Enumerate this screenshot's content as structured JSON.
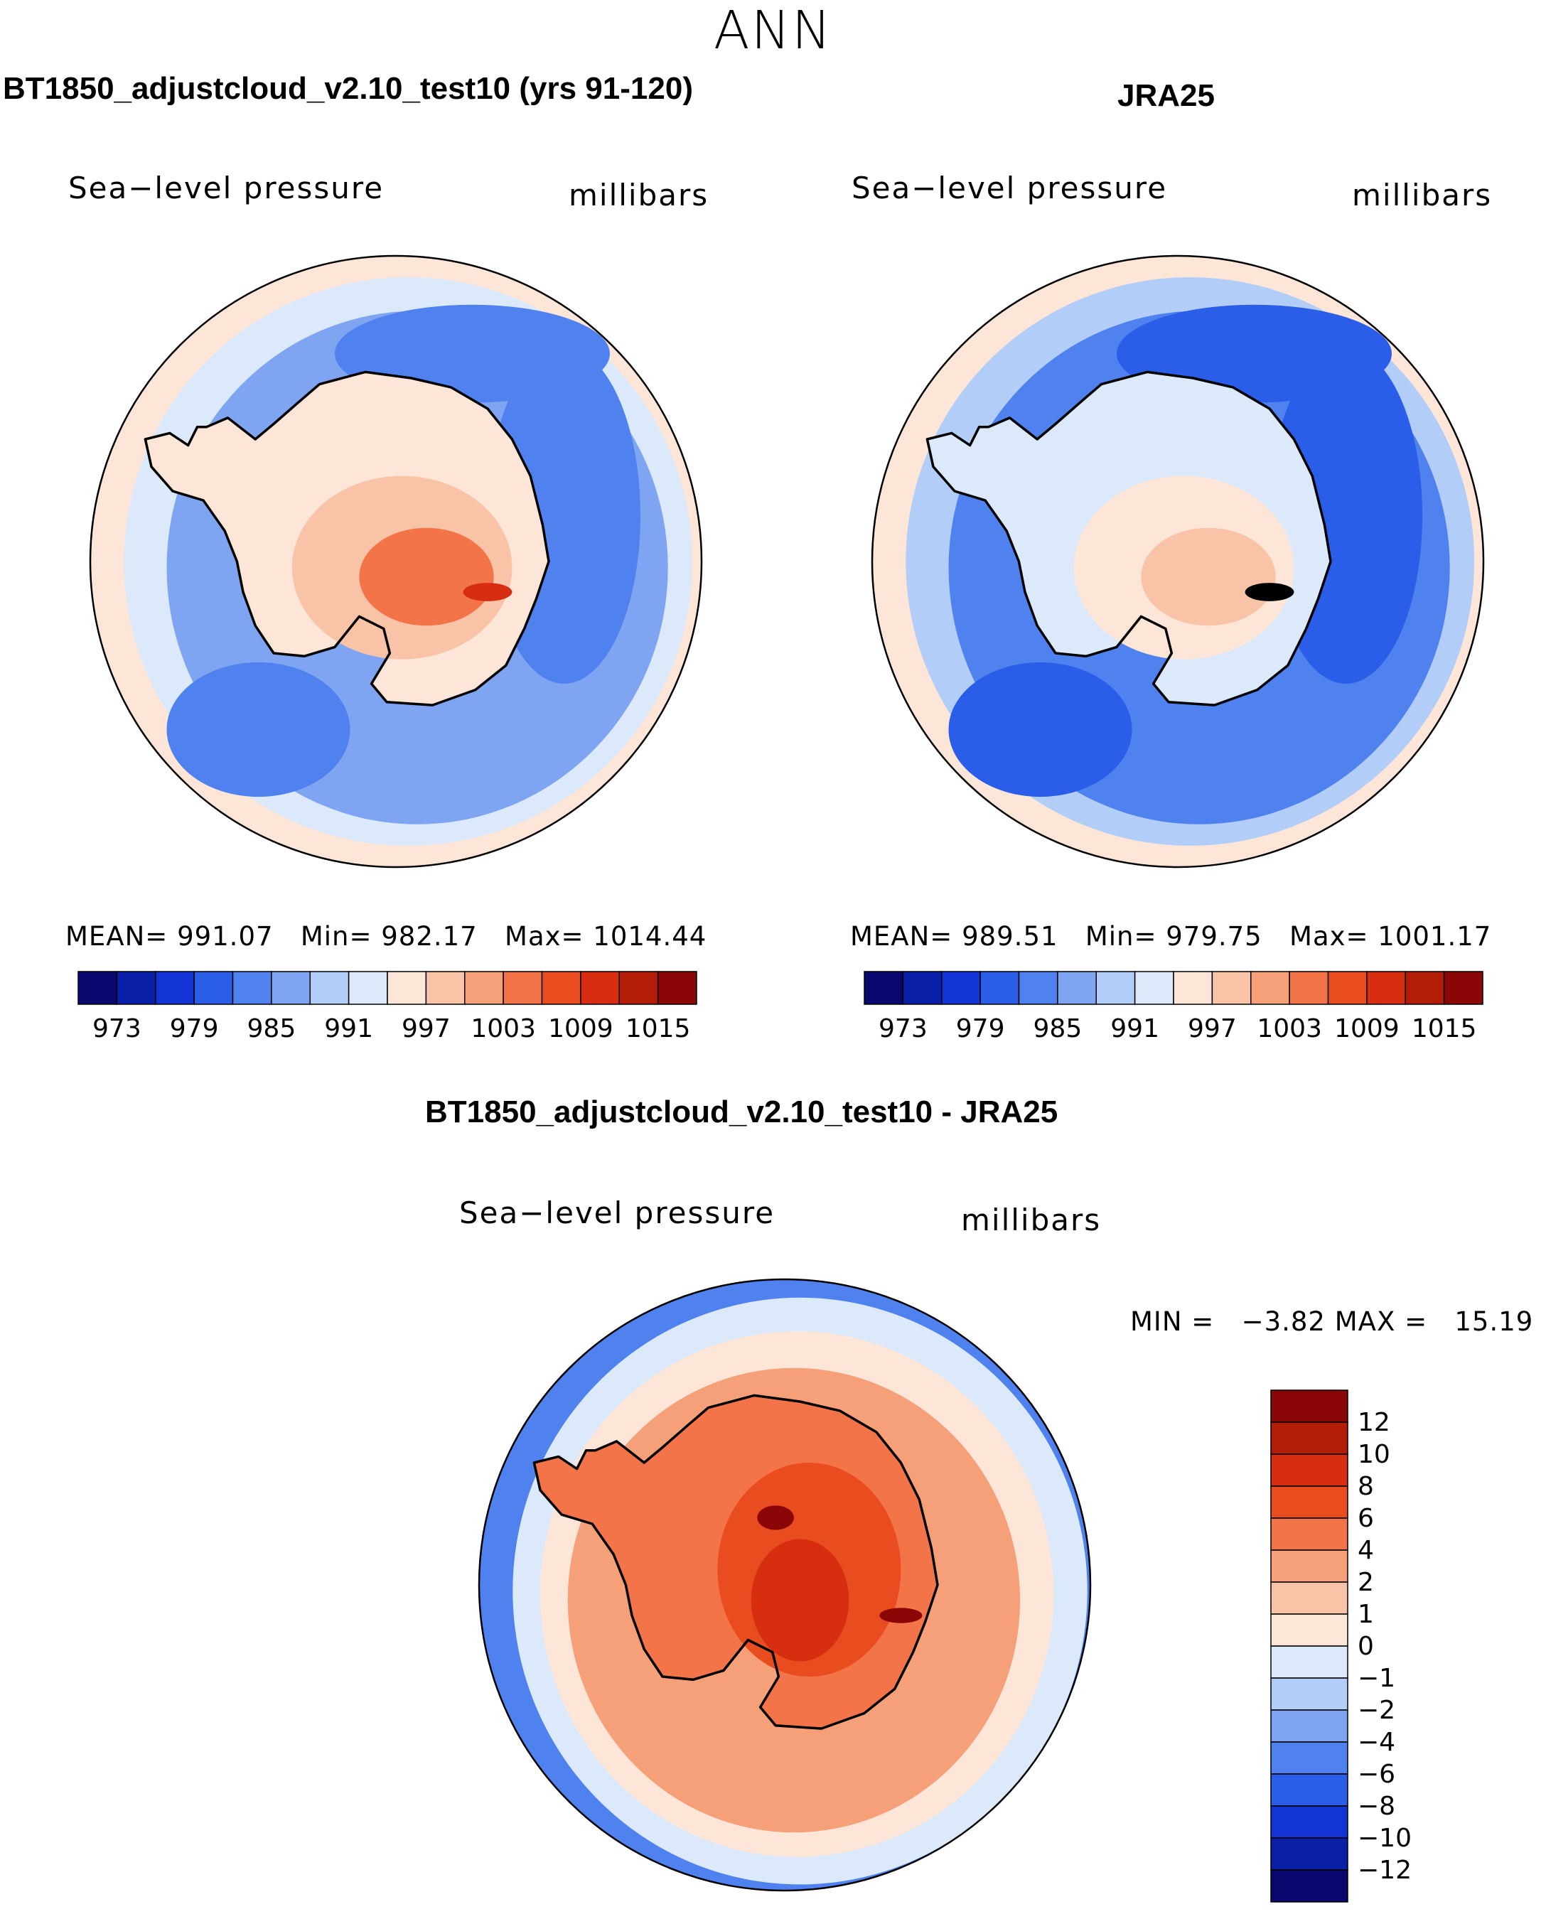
{
  "figure": {
    "season": "ANN",
    "colors": {
      "abs_scale": [
        "#08086e",
        "#0a1fa8",
        "#1234d4",
        "#2a5de8",
        "#4f82ee",
        "#7ea4f2",
        "#b2cdf7",
        "#dbe9fb",
        "#fde6d8",
        "#f9c3a7",
        "#f6a07a",
        "#f27448",
        "#e84c1f",
        "#d72d10",
        "#b31d08",
        "#8b0707"
      ],
      "diff_scale": [
        "#8b0707",
        "#b31d08",
        "#d72d10",
        "#e84c1f",
        "#f27448",
        "#f6a07a",
        "#f9c3a7",
        "#fde6d8",
        "#dbe9fb",
        "#b2cdf7",
        "#7ea4f2",
        "#4f82ee",
        "#2a5de8",
        "#1234d4",
        "#0a1fa8",
        "#08086e"
      ],
      "coastline": "#000000"
    }
  },
  "chart_data": [
    {
      "type": "heatmap",
      "projection": "south-polar-stereographic",
      "title": "BT1850_adjustcloud_v2.10_test10 (yrs 91-120)",
      "variable": "Sea−level pressure",
      "units": "millibars",
      "stats": {
        "mean_label": "MEAN=",
        "mean": "991.07",
        "min_label": "Min=",
        "min": "982.17",
        "max_label": "Max=",
        "max": "1014.44"
      },
      "colorbar": {
        "orientation": "horizontal",
        "tick_labels": [
          "973",
          "979",
          "985",
          "991",
          "997",
          "1003",
          "1009",
          "1015"
        ]
      },
      "zones": {
        "outer_ring": 8,
        "mid_ring": 7,
        "ocean": 5,
        "lows": 4,
        "continent": 8,
        "highs": [
          9,
          11,
          13
        ]
      }
    },
    {
      "type": "heatmap",
      "projection": "south-polar-stereographic",
      "title": "JRA25",
      "variable": "Sea−level pressure",
      "units": "millibars",
      "stats": {
        "mean_label": "MEAN=",
        "mean": "989.51",
        "min_label": "Min=",
        "min": "979.75",
        "max_label": "Max=",
        "max": "1001.17"
      },
      "colorbar": {
        "orientation": "horizontal",
        "tick_labels": [
          "973",
          "979",
          "985",
          "991",
          "997",
          "1003",
          "1009",
          "1015"
        ]
      },
      "zones": {
        "outer_ring": 8,
        "mid_ring": 6,
        "ocean": 4,
        "lows": 3,
        "continent": 7,
        "highs": [
          8,
          9
        ]
      }
    },
    {
      "type": "heatmap",
      "projection": "south-polar-stereographic",
      "title": "BT1850_adjustcloud_v2.10_test10 - JRA25",
      "variable": "Sea−level pressure",
      "units": "millibars",
      "stats": {
        "min_label": "MIN =",
        "min": "−3.82",
        "max_label": "MAX =",
        "max": "15.19"
      },
      "colorbar": {
        "orientation": "vertical",
        "tick_labels": [
          "12",
          "10",
          "8",
          "6",
          "4",
          "2",
          "1",
          "0",
          "−1",
          "−2",
          "−4",
          "−6",
          "−8",
          "−10",
          "−12"
        ]
      }
    }
  ]
}
